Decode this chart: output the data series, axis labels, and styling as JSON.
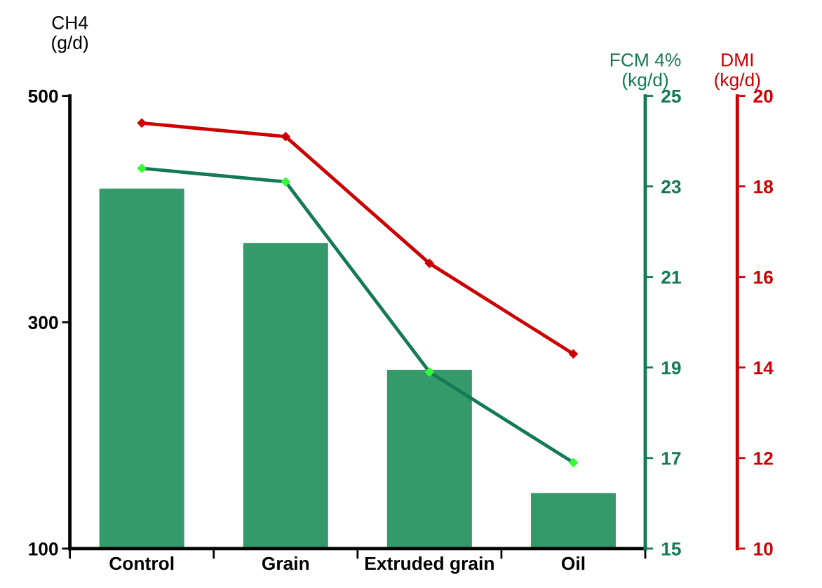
{
  "chart_data": {
    "type": "bar",
    "categories": [
      "Control",
      "Grain",
      "Extruded grain",
      "Oil"
    ],
    "ylabel": "CH4\n(g/d)",
    "y2label": "FCM 4%\n(kg/d)",
    "y3label": "DMI\n(kg/d)",
    "ylim": [
      100,
      500
    ],
    "yticks": [
      100,
      300,
      500
    ],
    "y2lim": [
      15,
      25
    ],
    "y2ticks": [
      15,
      17,
      19,
      21,
      23,
      25
    ],
    "y3lim": [
      10,
      20
    ],
    "y3ticks": [
      10,
      12,
      14,
      16,
      18,
      20
    ],
    "marker": "diamond",
    "grid": false,
    "series": [
      {
        "color": "#359a6a",
        "values": [
          418,
          370,
          258,
          149
        ]
      },
      {
        "type": "line",
        "axis": "y2",
        "color": "#137a55",
        "values": [
          23.4,
          23.1,
          18.9,
          16.9
        ]
      },
      {
        "type": "line",
        "axis": "y3",
        "color": "#cc0000",
        "values": [
          19.4,
          19.1,
          16.3,
          14.3
        ]
      }
    ]
  }
}
